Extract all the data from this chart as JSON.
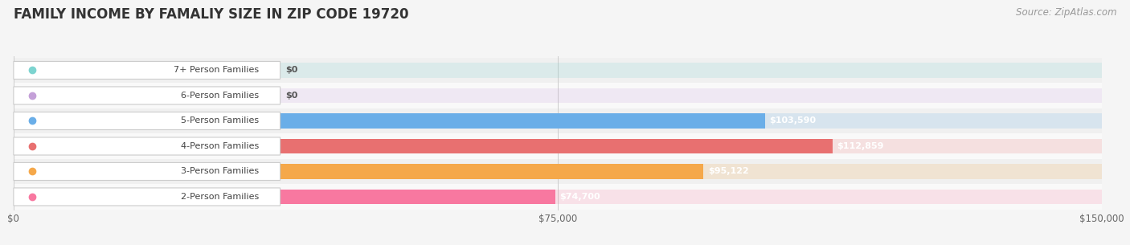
{
  "title": "FAMILY INCOME BY FAMALIY SIZE IN ZIP CODE 19720",
  "source": "Source: ZipAtlas.com",
  "categories": [
    "2-Person Families",
    "3-Person Families",
    "4-Person Families",
    "5-Person Families",
    "6-Person Families",
    "7+ Person Families"
  ],
  "values": [
    74700,
    95122,
    112859,
    103590,
    0,
    0
  ],
  "bar_colors": [
    "#f878a0",
    "#f5a84a",
    "#e87070",
    "#6aaee8",
    "#c4a0d8",
    "#7dd4d0"
  ],
  "xlim": [
    0,
    150000
  ],
  "xticks": [
    0,
    75000,
    150000
  ],
  "xtick_labels": [
    "$0",
    "$75,000",
    "$150,000"
  ],
  "title_fontsize": 12,
  "source_fontsize": 8.5,
  "label_fontsize": 8,
  "value_fontsize": 8,
  "background_color": "#f5f5f5",
  "bar_height": 0.6,
  "row_bg_colors": [
    "#f9f9f9",
    "#f0f0f0"
  ]
}
